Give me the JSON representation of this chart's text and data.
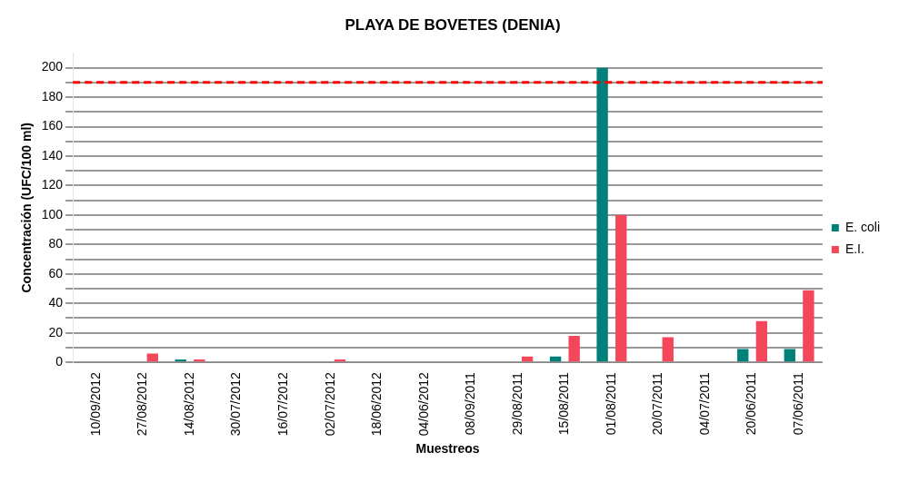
{
  "chart_data": {
    "type": "bar",
    "title": "PLAYA DE BOVETES (DENIA)",
    "xlabel": "Muestreos",
    "ylabel": "Concentración (UFC/100 ml)",
    "categories": [
      "10/09/2012",
      "27/08/2012",
      "14/08/2012",
      "30/07/2012",
      "16/07/2012",
      "02/07/2012",
      "18/06/2012",
      "04/06/2012",
      "08/09/2011",
      "29/08/2011",
      "15/08/2011",
      "01/08/2011",
      "20/07/2011",
      "04/07/2011",
      "20/06/2011",
      "07/06/2011"
    ],
    "series": [
      {
        "name": "E. coli",
        "color": "#00807a",
        "values": [
          0,
          0,
          2,
          0,
          0,
          0,
          0,
          0,
          0,
          0,
          4,
          200,
          0,
          0,
          9,
          9
        ]
      },
      {
        "name": "E.I.",
        "color": "#f5475a",
        "values": [
          0,
          6,
          2,
          0,
          0,
          2,
          0,
          0,
          0,
          4,
          18,
          100,
          17,
          0,
          28,
          49
        ]
      }
    ],
    "ylim": [
      0,
      210
    ],
    "yticks": [
      0,
      {
        "value": 10,
        "label": null
      },
      20,
      {
        "value": 30,
        "label": null
      },
      40,
      {
        "value": 50,
        "label": null
      },
      60,
      {
        "value": 70,
        "label": null
      },
      80,
      {
        "value": 90,
        "label": null
      },
      100,
      {
        "value": 110,
        "label": null
      },
      120,
      {
        "value": 130,
        "label": null
      },
      140,
      {
        "value": 150,
        "label": null
      },
      160,
      {
        "value": 170,
        "label": null
      },
      180,
      {
        "value": 190,
        "label": null
      },
      200
    ],
    "ref_lines": [
      {
        "axis": "y",
        "value": 190,
        "color": "#ff0000",
        "line_style": "dashed"
      }
    ],
    "grid": "y",
    "legend": "right"
  }
}
